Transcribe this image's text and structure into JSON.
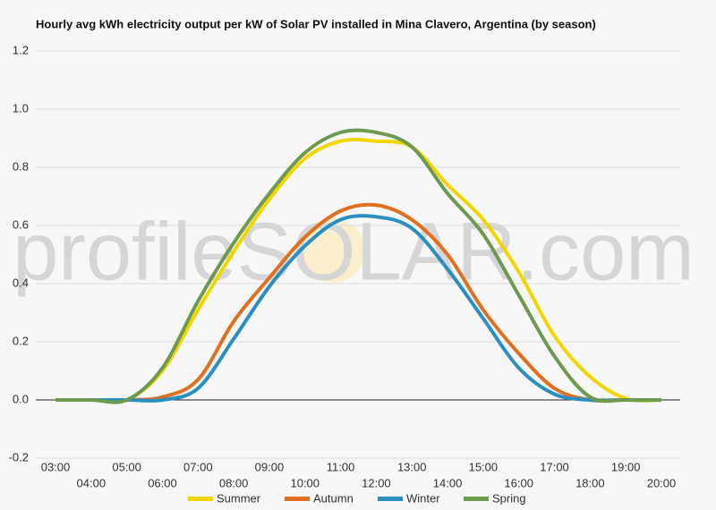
{
  "chart_data": {
    "type": "line",
    "title": "Hourly avg kWh electricity output per kW of Solar PV installed in Mina Clavero, Argentina (by season)",
    "watermark": "profileSOLAR.com",
    "categories": [
      "03:00",
      "04:00",
      "05:00",
      "06:00",
      "07:00",
      "08:00",
      "09:00",
      "10:00",
      "11:00",
      "12:00",
      "13:00",
      "14:00",
      "15:00",
      "16:00",
      "17:00",
      "18:00",
      "19:00",
      "20:00"
    ],
    "series": [
      {
        "name": "Summer",
        "color": "#f2d600",
        "values": [
          0,
          0,
          0,
          0.1,
          0.31,
          0.51,
          0.69,
          0.83,
          0.89,
          0.89,
          0.87,
          0.74,
          0.62,
          0.44,
          0.22,
          0.08,
          0.005,
          0
        ]
      },
      {
        "name": "Autumn",
        "color": "#e07020",
        "values": [
          0,
          0,
          0,
          0.01,
          0.07,
          0.27,
          0.42,
          0.56,
          0.65,
          0.67,
          0.62,
          0.5,
          0.31,
          0.16,
          0.04,
          0,
          0,
          0
        ]
      },
      {
        "name": "Winter",
        "color": "#2a8fc0",
        "values": [
          0,
          0,
          0,
          0,
          0.04,
          0.21,
          0.39,
          0.53,
          0.62,
          0.63,
          0.59,
          0.45,
          0.28,
          0.11,
          0.02,
          0,
          0,
          0
        ]
      },
      {
        "name": "Spring",
        "color": "#6e9a50",
        "values": [
          0,
          0,
          0,
          0.11,
          0.34,
          0.54,
          0.71,
          0.85,
          0.92,
          0.92,
          0.87,
          0.71,
          0.57,
          0.36,
          0.15,
          0.01,
          0,
          0
        ]
      }
    ],
    "ylim": [
      -0.2,
      1.2
    ],
    "yticks": [
      -0.2,
      {
        "value": 0,
        "label": "0.0"
      },
      0.2,
      0.4,
      0.6,
      0.8,
      {
        "value": 1,
        "label": "1.0"
      },
      1.2
    ],
    "grid": true,
    "legend": "bottom"
  }
}
